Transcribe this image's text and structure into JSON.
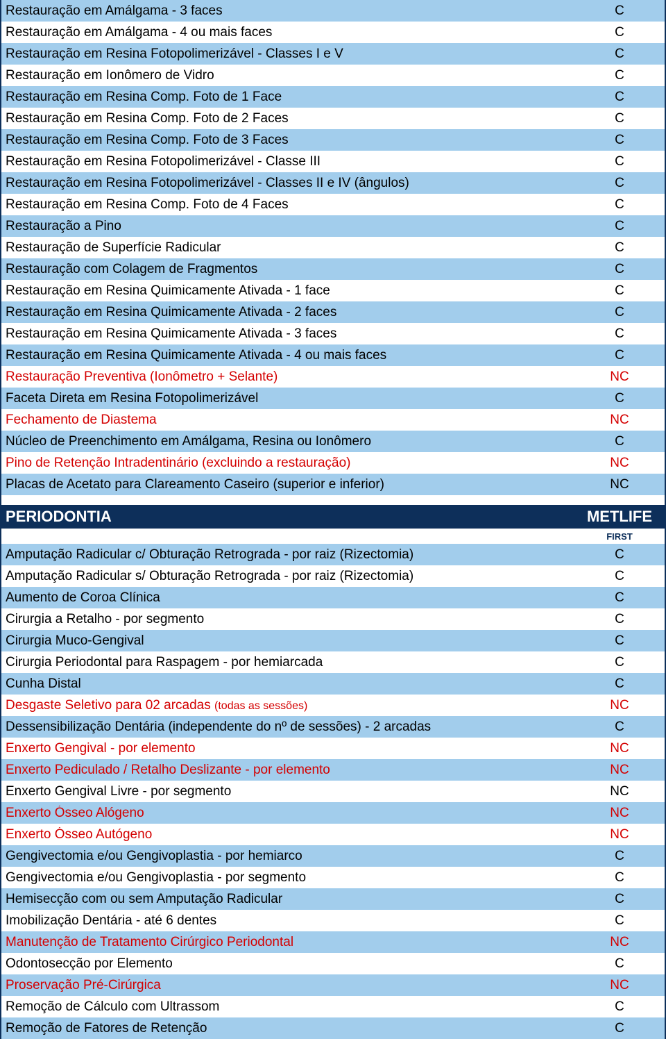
{
  "colors": {
    "stripe_blue": "#a2cdec",
    "stripe_white": "#ffffff",
    "header_bg": "#0d2f5a",
    "text_black": "#000000",
    "text_red": "#d40000",
    "text_navy": "#0d2f5a",
    "border": "#0d2f5a"
  },
  "section1": {
    "rows": [
      {
        "label": "Restauração em Amálgama - 3 faces",
        "value": "C",
        "color": "black",
        "bg": "blue"
      },
      {
        "label": "Restauração em Amálgama - 4 ou mais faces",
        "value": "C",
        "color": "black",
        "bg": "white"
      },
      {
        "label": "Restauração em Resina Fotopolimerizável - Classes I e V",
        "value": "C",
        "color": "black",
        "bg": "blue"
      },
      {
        "label": "Restauração em Ionômero de Vidro",
        "value": "C",
        "color": "black",
        "bg": "white"
      },
      {
        "label": "Restauração em Resina Comp. Foto de 1 Face",
        "value": "C",
        "color": "black",
        "bg": "blue"
      },
      {
        "label": "Restauração em Resina Comp. Foto de 2 Faces",
        "value": "C",
        "color": "black",
        "bg": "white"
      },
      {
        "label": "Restauração em Resina Comp. Foto de 3 Faces",
        "value": "C",
        "color": "black",
        "bg": "blue"
      },
      {
        "label": "Restauração em Resina Fotopolimerizável - Classe III",
        "value": "C",
        "color": "black",
        "bg": "white"
      },
      {
        "label": "Restauração em Resina Fotopolimerizável - Classes II e IV (ângulos)",
        "value": "C",
        "color": "black",
        "bg": "blue"
      },
      {
        "label": "Restauração em Resina Comp. Foto de 4 Faces",
        "value": "C",
        "color": "black",
        "bg": "white"
      },
      {
        "label": "Restauração a Pino",
        "value": "C",
        "color": "black",
        "bg": "blue"
      },
      {
        "label": "Restauração de Superfície Radicular",
        "value": "C",
        "color": "black",
        "bg": "white"
      },
      {
        "label": "Restauração com Colagem de Fragmentos",
        "value": "C",
        "color": "black",
        "bg": "blue"
      },
      {
        "label": "Restauração em Resina Quimicamente Ativada - 1 face",
        "value": "C",
        "color": "black",
        "bg": "white"
      },
      {
        "label": "Restauração em Resina Quimicamente Ativada - 2 faces",
        "value": "C",
        "color": "black",
        "bg": "blue"
      },
      {
        "label": "Restauração em Resina Quimicamente Ativada - 3 faces",
        "value": "C",
        "color": "black",
        "bg": "white"
      },
      {
        "label": "Restauração em Resina Quimicamente Ativada - 4 ou mais faces",
        "value": "C",
        "color": "black",
        "bg": "blue"
      },
      {
        "label": "Restauração Preventiva (Ionômetro + Selante)",
        "value": "NC",
        "color": "red",
        "bg": "white"
      },
      {
        "label": "Faceta Direta em Resina Fotopolimerizável",
        "value": "C",
        "color": "black",
        "bg": "blue"
      },
      {
        "label": "Fechamento de Diastema",
        "value": "NC",
        "color": "red",
        "bg": "white"
      },
      {
        "label": "Núcleo de Preenchimento em Amálgama, Resina ou Ionômero",
        "value": "C",
        "color": "black",
        "bg": "blue"
      },
      {
        "label": "Pino de Retenção Intradentinário (excluindo a restauração)",
        "value": "NC",
        "color": "red",
        "bg": "white"
      },
      {
        "label": "Placas de Acetato para Clareamento Caseiro (superior e inferior)",
        "value": "NC",
        "color": "black",
        "bg": "blue"
      }
    ]
  },
  "section2": {
    "header_label": "PERIODONTIA",
    "header_value": "METLIFE",
    "sub_value": "FIRST",
    "rows": [
      {
        "label": "Amputação Radicular c/ Obturação Retrograda - por raiz (Rizectomia)",
        "value": "C",
        "color": "black",
        "bg": "blue"
      },
      {
        "label": "Amputação Radicular s/ Obturação Retrograda - por raiz (Rizectomia)",
        "value": "C",
        "color": "black",
        "bg": "white"
      },
      {
        "label": "Aumento de Coroa Clínica",
        "value": "C",
        "color": "black",
        "bg": "blue"
      },
      {
        "label": "Cirurgia a Retalho - por segmento",
        "value": "C",
        "color": "black",
        "bg": "white"
      },
      {
        "label": "Cirurgia Muco-Gengival",
        "value": "C",
        "color": "black",
        "bg": "blue"
      },
      {
        "label": "Cirurgia Periodontal para Raspagem - por hemiarcada",
        "value": "C",
        "color": "black",
        "bg": "white"
      },
      {
        "label": "Cunha Distal",
        "value": "C",
        "color": "black",
        "bg": "blue"
      },
      {
        "label": "Desgaste Seletivo para 02 arcadas (todas as sessões)",
        "value": "NC",
        "color": "red",
        "bg": "white",
        "small_tail": "(todas as sessões)"
      },
      {
        "label": "Dessensibilização Dentária (independente do nº de sessões) - 2 arcadas",
        "value": "C",
        "color": "black",
        "bg": "blue"
      },
      {
        "label": "Enxerto Gengival - por elemento",
        "value": "NC",
        "color": "red",
        "bg": "white"
      },
      {
        "label": "Enxerto Pediculado / Retalho Deslizante - por elemento",
        "value": "NC",
        "color": "red",
        "bg": "blue"
      },
      {
        "label": "Enxerto Gengival Livre - por segmento",
        "value": "NC",
        "color": "black",
        "bg": "white"
      },
      {
        "label": "Enxerto Ósseo Alógeno",
        "value": "NC",
        "color": "red",
        "bg": "blue"
      },
      {
        "label": "Enxerto Ósseo Autógeno",
        "value": "NC",
        "color": "red",
        "bg": "white"
      },
      {
        "label": "Gengivectomia e/ou Gengivoplastia - por hemiarco",
        "value": "C",
        "color": "black",
        "bg": "blue"
      },
      {
        "label": "Gengivectomia e/ou Gengivoplastia - por segmento",
        "value": "C",
        "color": "black",
        "bg": "white"
      },
      {
        "label": "Hemisecção com ou sem Amputação Radicular",
        "value": "C",
        "color": "black",
        "bg": "blue"
      },
      {
        "label": "Imobilização Dentária - até 6 dentes",
        "value": "C",
        "color": "black",
        "bg": "white"
      },
      {
        "label": "Manutenção de Tratamento Cirúrgico Periodontal",
        "value": "NC",
        "color": "red",
        "bg": "blue"
      },
      {
        "label": "Odontosecção por Elemento",
        "value": "C",
        "color": "black",
        "bg": "white"
      },
      {
        "label": "Proservação Pré-Cirúrgica",
        "value": "NC",
        "color": "red",
        "bg": "blue"
      },
      {
        "label": "Remoção de Cálculo com Ultrassom",
        "value": "C",
        "color": "black",
        "bg": "white"
      },
      {
        "label": "Remoção de Fatores de Retenção",
        "value": "C",
        "color": "black",
        "bg": "blue"
      }
    ]
  }
}
